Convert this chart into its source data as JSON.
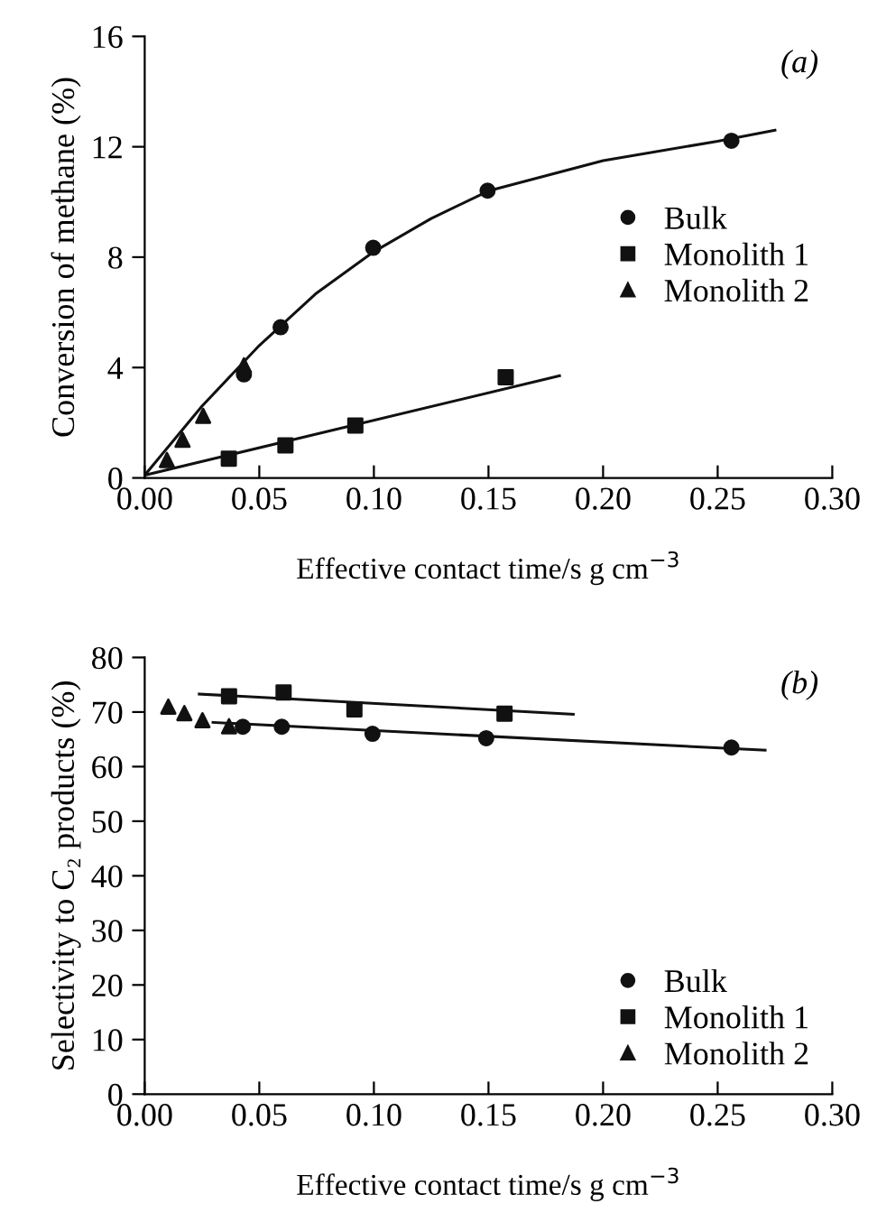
{
  "chart_data": [
    {
      "type": "scatter",
      "xlabel": "Effective contact time/s g cm$^{−3}$",
      "ylabel": "Conversion of methane (%)",
      "annotations": [
        "(a)"
      ],
      "xlim": [
        0,
        0.3
      ],
      "ylim": [
        0,
        16
      ],
      "xticks": [
        {
          "value": 0,
          "label": "0.00"
        },
        0.05,
        {
          "value": 0.1,
          "label": "0.10"
        },
        0.15,
        {
          "value": 0.2,
          "label": "0.20"
        },
        0.25,
        {
          "value": 0.3,
          "label": "0.30"
        }
      ],
      "yticks": [
        0,
        4,
        8,
        12,
        16
      ],
      "legend": "right",
      "grid": false,
      "series": [
        {
          "name": "Bulk",
          "color": "#111111",
          "marker": "circle",
          "x": [
            0.0433,
            0.0593,
            0.0997,
            0.1496,
            0.256
          ],
          "values": [
            3.75,
            5.46,
            8.34,
            10.41,
            12.22
          ]
        },
        {
          "name": "Monolith 1",
          "color": "#111111",
          "marker": "square",
          "x": [
            0.0367,
            0.0614,
            0.0919,
            0.1575
          ],
          "values": [
            0.7,
            1.18,
            1.9,
            3.65
          ]
        },
        {
          "name": "Monolith 2",
          "color": "#111111",
          "marker": "triangle",
          "x": [
            0.0097,
            0.0165,
            0.0255,
            0.0433
          ],
          "values": [
            0.65,
            1.38,
            2.25,
            4.08
          ]
        },
        {
          "type": "line",
          "color": "#111111",
          "x": [
            0,
            0.025,
            0.05,
            0.075,
            0.1,
            0.125,
            0.15,
            0.2,
            0.25,
            0.275
          ],
          "values": [
            0.1,
            2.6,
            4.8,
            6.7,
            8.2,
            9.4,
            10.4,
            11.5,
            12.2,
            12.6
          ]
        },
        {
          "type": "line",
          "color": "#111111",
          "x": [
            0,
            0.181
          ],
          "values": [
            0.1,
            3.7
          ]
        }
      ]
    },
    {
      "type": "scatter",
      "xlabel": "Effective contact time/s g cm$^{−3}$",
      "ylabel": "Selectivity to C₂ products (%)",
      "annotations": [
        "(b)"
      ],
      "xlim": [
        0,
        0.3
      ],
      "ylim": [
        0,
        80
      ],
      "xticks": [
        {
          "value": 0,
          "label": "0.00"
        },
        0.05,
        {
          "value": 0.1,
          "label": "0.10"
        },
        0.15,
        {
          "value": 0.2,
          "label": "0.20"
        },
        0.25,
        {
          "value": 0.3,
          "label": "0.30"
        }
      ],
      "yticks": [
        0,
        10,
        20,
        30,
        40,
        50,
        60,
        70,
        80
      ],
      "legend": "bottom right",
      "grid": false,
      "series": [
        {
          "name": "Bulk",
          "color": "#111111",
          "marker": "circle",
          "x": [
            0.0428,
            0.0598,
            0.0994,
            0.149,
            0.256
          ],
          "values": [
            67.3,
            67.3,
            66.0,
            65.2,
            63.5
          ]
        },
        {
          "name": "Monolith 1",
          "color": "#111111",
          "marker": "square",
          "x": [
            0.0368,
            0.0606,
            0.0915,
            0.157
          ],
          "values": [
            72.9,
            73.6,
            70.5,
            69.7
          ]
        },
        {
          "name": "Monolith 2",
          "color": "#111111",
          "marker": "triangle",
          "x": [
            0.0103,
            0.0173,
            0.0252,
            0.0368
          ],
          "values": [
            71.0,
            69.8,
            68.5,
            67.4
          ]
        },
        {
          "type": "line",
          "color": "#111111",
          "x": [
            0.0238,
            0.187
          ],
          "values": [
            73.3,
            69.6
          ]
        },
        {
          "type": "line",
          "color": "#111111",
          "x": [
            0.0298,
            0.2707
          ],
          "values": [
            68.1,
            63.0
          ]
        }
      ]
    }
  ]
}
